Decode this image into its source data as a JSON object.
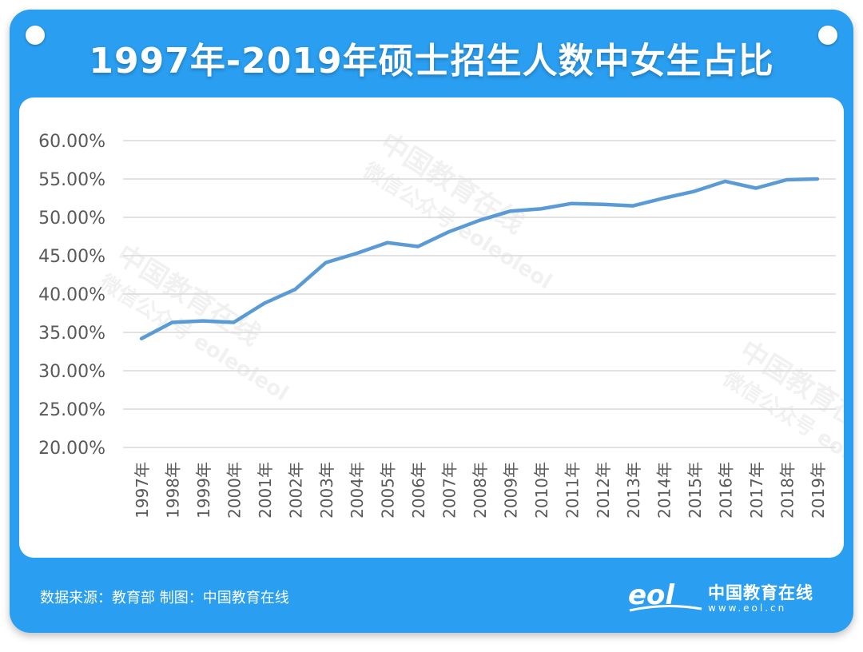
{
  "title": "1997年-2019年硕士招生人数中女生占比",
  "footer": {
    "source": "数据来源：教育部  制图：中国教育在线"
  },
  "logo": {
    "mark_text": "eol",
    "name": "中国教育在线",
    "url": "www.eol.cn"
  },
  "watermark": {
    "line1": "中国教育在线",
    "line2": "微信公众号 eoleoleol"
  },
  "colors": {
    "frame": "#2a9ef0",
    "line": "#5b9bd5",
    "grid": "#d9d9d9",
    "axis_text": "#595959"
  },
  "chart_data": {
    "type": "line",
    "title": "1997年-2019年硕士招生人数中女生占比",
    "xlabel": "",
    "ylabel": "",
    "ylim": [
      20,
      60
    ],
    "yticks": [
      "60.00%",
      "55.00%",
      "50.00%",
      "45.00%",
      "40.00%",
      "35.00%",
      "30.00%",
      "25.00%",
      "20.00%"
    ],
    "grid": true,
    "categories": [
      "1997年",
      "1998年",
      "1999年",
      "2000年",
      "2001年",
      "2002年",
      "2003年",
      "2004年",
      "2005年",
      "2006年",
      "2007年",
      "2008年",
      "2009年",
      "2010年",
      "2011年",
      "2012年",
      "2013年",
      "2014年",
      "2015年",
      "2016年",
      "2017年",
      "2018年",
      "2019年"
    ],
    "values": [
      34.2,
      36.3,
      36.5,
      36.3,
      38.8,
      40.6,
      44.1,
      45.3,
      46.7,
      46.2,
      48.1,
      49.6,
      50.8,
      51.1,
      51.8,
      51.7,
      51.5,
      52.5,
      53.4,
      54.7,
      53.8,
      54.9,
      55.0
    ]
  }
}
